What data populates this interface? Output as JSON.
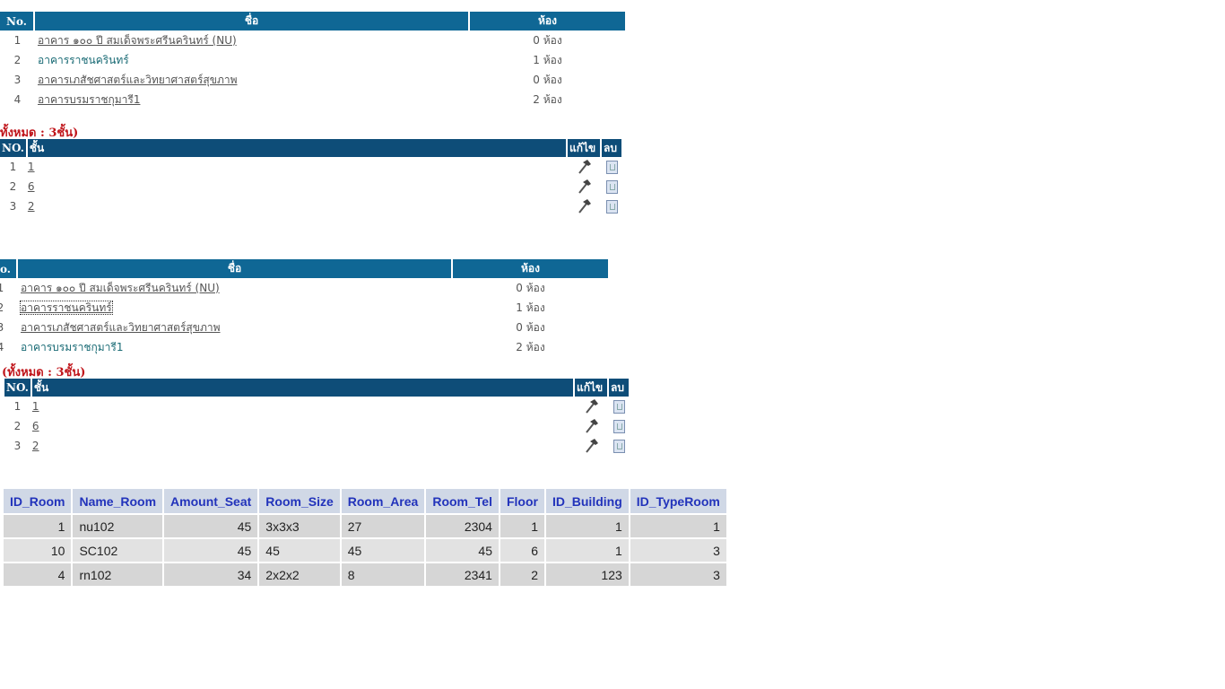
{
  "building_header": {
    "no": "No.",
    "name": "ชื่อ",
    "rooms": "ห้อง"
  },
  "building_header_2": {
    "no": "o.",
    "name": "ชื่อ",
    "rooms": "ห้อง"
  },
  "buildings": [
    {
      "no": "1",
      "name": "อาคาร ๑๐๐ ปี สมเด็จพระศรีนครินทร์ (NU)",
      "rooms": "0 ห้อง"
    },
    {
      "no": "2",
      "name": "อาคารราชนครินทร์",
      "rooms": "1 ห้อง"
    },
    {
      "no": "3",
      "name": "อาคารเภสัชศาสตร์และวิทยาศาสตร์สุขภาพ",
      "rooms": "0 ห้อง"
    },
    {
      "no": "4",
      "name": "อาคารบรมราชกุมารี1",
      "rooms": "2 ห้อง"
    }
  ],
  "total_1": "ทั้งหมด : 3ชั้น)",
  "total_2": "(ทั้งหมด : 3ชั้น)",
  "floor_header": {
    "no": "NO.",
    "floor": "ชั้น",
    "edit": "แก้ไข",
    "delete": "ลบ"
  },
  "floors": [
    {
      "no": "1",
      "floor": "1"
    },
    {
      "no": "2",
      "floor": "6"
    },
    {
      "no": "3",
      "floor": "2"
    }
  ],
  "room_columns": [
    "ID_Room",
    "Name_Room",
    "Amount_Seat",
    "Room_Size",
    "Room_Area",
    "Room_Tel",
    "Floor",
    "ID_Building",
    "ID_TypeRoom"
  ],
  "rooms": [
    [
      "1",
      "nu102",
      "45",
      "3x3x3",
      "27",
      "2304",
      "1",
      "1",
      "1"
    ],
    [
      "10",
      "SC102",
      "45",
      "45",
      "45",
      "45",
      "6",
      "1",
      "3"
    ],
    [
      "4",
      "rn102",
      "34",
      "2x2x2",
      "8",
      "2341",
      "2",
      "123",
      "3"
    ]
  ]
}
